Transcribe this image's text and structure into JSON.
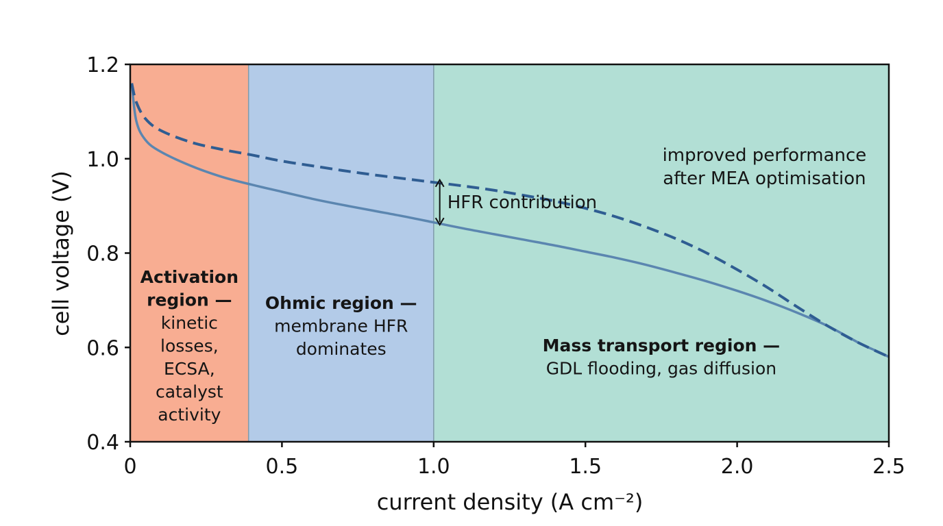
{
  "chart_data": {
    "type": "line",
    "xlabel": "current density (A cm⁻²)",
    "ylabel": "cell voltage (V)",
    "xlim": [
      0,
      2.5
    ],
    "ylim": [
      0.4,
      1.2
    ],
    "xticks": [
      {
        "value": 0,
        "label": "0"
      },
      {
        "value": 0.5,
        "label": "0.5"
      },
      {
        "value": 1.0,
        "label": "1.0"
      },
      {
        "value": 1.5,
        "label": "1.5"
      },
      {
        "value": 2.0,
        "label": "2.0"
      },
      {
        "value": 2.5,
        "label": "2.5"
      }
    ],
    "yticks": [
      {
        "value": 0.4,
        "label": "0.4"
      },
      {
        "value": 0.6,
        "label": "0.6"
      },
      {
        "value": 0.8,
        "label": "0.8"
      },
      {
        "value": 1.0,
        "label": "1.0"
      },
      {
        "value": 1.2,
        "label": "1.2"
      }
    ],
    "grid": false,
    "legend": "none",
    "regions": [
      {
        "x_from": 0,
        "x_to": 0.39,
        "color": "#f8ad92",
        "title_lines": [
          "Activation",
          "region —"
        ],
        "body_lines": [
          "kinetic",
          "losses,",
          "ECSA,",
          "catalyst",
          "activity"
        ]
      },
      {
        "x_from": 0.39,
        "x_to": 1.0,
        "color": "#b3cbe8",
        "title_lines": [
          "Ohmic region —"
        ],
        "body_lines": [
          "membrane HFR",
          "dominates"
        ]
      },
      {
        "x_from": 1.0,
        "x_to": 2.5,
        "color": "#b2dfd5",
        "title_lines": [
          "Mass transport region —"
        ],
        "body_lines": [
          "GDL flooding, gas diffusion"
        ]
      }
    ],
    "series": [
      {
        "style": "solid",
        "color": "#5b86b0",
        "x": [
          0.005,
          0.02,
          0.05,
          0.1,
          0.2,
          0.3,
          0.4,
          0.5,
          0.6,
          0.7,
          0.8,
          0.9,
          1.0,
          1.1,
          1.2,
          1.3,
          1.4,
          1.5,
          1.6,
          1.7,
          1.8,
          1.9,
          2.0,
          2.1,
          2.2,
          2.3,
          2.4,
          2.45,
          2.5
        ],
        "y": [
          1.16,
          1.08,
          1.04,
          1.015,
          0.985,
          0.962,
          0.945,
          0.93,
          0.915,
          0.902,
          0.89,
          0.878,
          0.865,
          0.852,
          0.84,
          0.828,
          0.816,
          0.803,
          0.79,
          0.775,
          0.758,
          0.74,
          0.72,
          0.698,
          0.673,
          0.645,
          0.61,
          0.595,
          0.58
        ]
      },
      {
        "style": "dashed",
        "color": "#2f5d92",
        "x": [
          0.005,
          0.02,
          0.05,
          0.1,
          0.2,
          0.3,
          0.4,
          0.5,
          0.6,
          0.7,
          0.8,
          0.9,
          1.0,
          1.1,
          1.2,
          1.3,
          1.4,
          1.5,
          1.6,
          1.7,
          1.8,
          1.9,
          2.0,
          2.1,
          2.2,
          2.3,
          2.4,
          2.5
        ],
        "y": [
          1.16,
          1.12,
          1.085,
          1.06,
          1.035,
          1.02,
          1.008,
          0.995,
          0.985,
          0.975,
          0.966,
          0.958,
          0.95,
          0.942,
          0.933,
          0.922,
          0.91,
          0.895,
          0.877,
          0.855,
          0.83,
          0.8,
          0.765,
          0.727,
          0.685,
          0.645,
          0.61,
          0.58
        ]
      }
    ],
    "annotations": [
      {
        "kind": "double-arrow",
        "x": 1.02,
        "y_from": 0.86,
        "y_to": 0.955,
        "text": "HFR contribution",
        "text_x": 1.045,
        "text_y": 0.895
      },
      {
        "kind": "text",
        "lines": [
          "improved performance",
          "after MEA optimisation"
        ],
        "x": 2.09,
        "y": 0.995
      }
    ]
  }
}
